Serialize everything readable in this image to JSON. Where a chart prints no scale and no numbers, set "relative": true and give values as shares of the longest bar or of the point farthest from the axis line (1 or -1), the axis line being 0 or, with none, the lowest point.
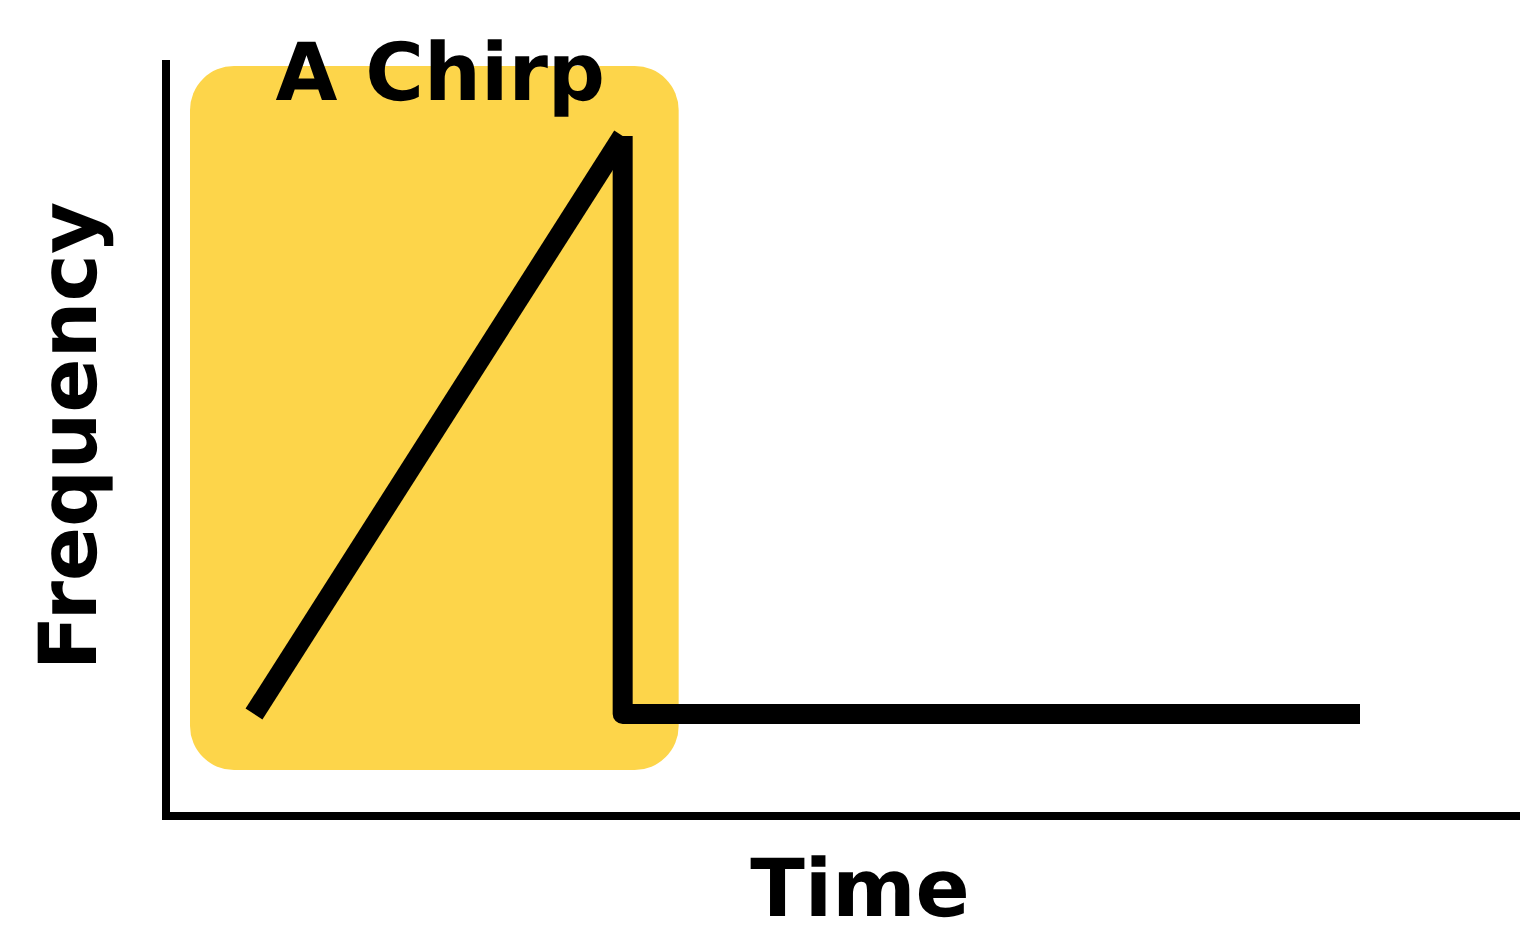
{
  "chart_data": {
    "type": "line",
    "title": "A Chirp",
    "xlabel": "Time",
    "ylabel": "Frequency",
    "relative": true,
    "categories": [
      null,
      null,
      null,
      null
    ],
    "series": [
      {
        "color": "#000000",
        "values": [
          0.15,
          1,
          null,
          null
        ]
      },
      {
        "type": "step",
        "color": "#000000",
        "values": [
          null,
          1,
          0.15,
          0.15
        ]
      }
    ],
    "marker": "none",
    "line_style": "solid"
  }
}
